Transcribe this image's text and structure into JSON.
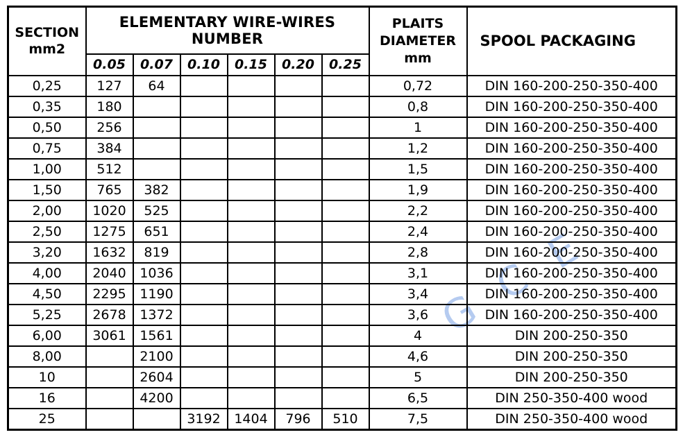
{
  "table": {
    "header": {
      "section": "SECTION\nmm2",
      "wires_group": "ELEMENTARY WIRE-WIRES NUMBER",
      "wire_sizes": [
        "0.05",
        "0.07",
        "0.10",
        "0.15",
        "0.20",
        "0.25"
      ],
      "diameter": "PLAITS\nDIAMETER\nmm",
      "packaging": "SPOOL PACKAGING"
    },
    "rows": [
      {
        "section": "0,25",
        "wires": [
          "127",
          "64",
          "",
          "",
          "",
          ""
        ],
        "diameter": "0,72",
        "packaging": "DIN 160-200-250-350-400"
      },
      {
        "section": "0,35",
        "wires": [
          "180",
          "",
          "",
          "",
          "",
          ""
        ],
        "diameter": "0,8",
        "packaging": "DIN 160-200-250-350-400"
      },
      {
        "section": "0,50",
        "wires": [
          "256",
          "",
          "",
          "",
          "",
          ""
        ],
        "diameter": "1",
        "packaging": "DIN 160-200-250-350-400"
      },
      {
        "section": "0,75",
        "wires": [
          "384",
          "",
          "",
          "",
          "",
          ""
        ],
        "diameter": "1,2",
        "packaging": "DIN 160-200-250-350-400"
      },
      {
        "section": "1,00",
        "wires": [
          "512",
          "",
          "",
          "",
          "",
          ""
        ],
        "diameter": "1,5",
        "packaging": "DIN 160-200-250-350-400"
      },
      {
        "section": "1,50",
        "wires": [
          "765",
          "382",
          "",
          "",
          "",
          ""
        ],
        "diameter": "1,9",
        "packaging": "DIN 160-200-250-350-400"
      },
      {
        "section": "2,00",
        "wires": [
          "1020",
          "525",
          "",
          "",
          "",
          ""
        ],
        "diameter": "2,2",
        "packaging": "DIN 160-200-250-350-400"
      },
      {
        "section": "2,50",
        "wires": [
          "1275",
          "651",
          "",
          "",
          "",
          ""
        ],
        "diameter": "2,4",
        "packaging": "DIN 160-200-250-350-400"
      },
      {
        "section": "3,20",
        "wires": [
          "1632",
          "819",
          "",
          "",
          "",
          ""
        ],
        "diameter": "2,8",
        "packaging": "DIN 160-200-250-350-400"
      },
      {
        "section": "4,00",
        "wires": [
          "2040",
          "1036",
          "",
          "",
          "",
          ""
        ],
        "diameter": "3,1",
        "packaging": "DIN 160-200-250-350-400"
      },
      {
        "section": "4,50",
        "wires": [
          "2295",
          "1190",
          "",
          "",
          "",
          ""
        ],
        "diameter": "3,4",
        "packaging": "DIN 160-200-250-350-400"
      },
      {
        "section": "5,25",
        "wires": [
          "2678",
          "1372",
          "",
          "",
          "",
          ""
        ],
        "diameter": "3,6",
        "packaging": "DIN 160-200-250-350-400"
      },
      {
        "section": "6,00",
        "wires": [
          "3061",
          "1561",
          "",
          "",
          "",
          ""
        ],
        "diameter": "4",
        "packaging": "DIN 200-250-350"
      },
      {
        "section": "8,00",
        "wires": [
          "",
          "2100",
          "",
          "",
          "",
          ""
        ],
        "diameter": "4,6",
        "packaging": "DIN 200-250-350"
      },
      {
        "section": "10",
        "wires": [
          "",
          "2604",
          "",
          "",
          "",
          ""
        ],
        "diameter": "5",
        "packaging": "DIN 200-250-350"
      },
      {
        "section": "16",
        "wires": [
          "",
          "4200",
          "",
          "",
          "",
          ""
        ],
        "diameter": "6,5",
        "packaging": "DIN 250-350-400 wood"
      },
      {
        "section": "25",
        "wires": [
          "",
          "",
          "3192",
          "1404",
          "796",
          "510"
        ],
        "diameter": "7,5",
        "packaging": "DIN 250-350-400 wood"
      }
    ]
  },
  "watermark": {
    "text": "G C E",
    "color": "#a9c3ee"
  },
  "colors": {
    "border": "#000000",
    "background": "#ffffff",
    "text": "#000000"
  }
}
